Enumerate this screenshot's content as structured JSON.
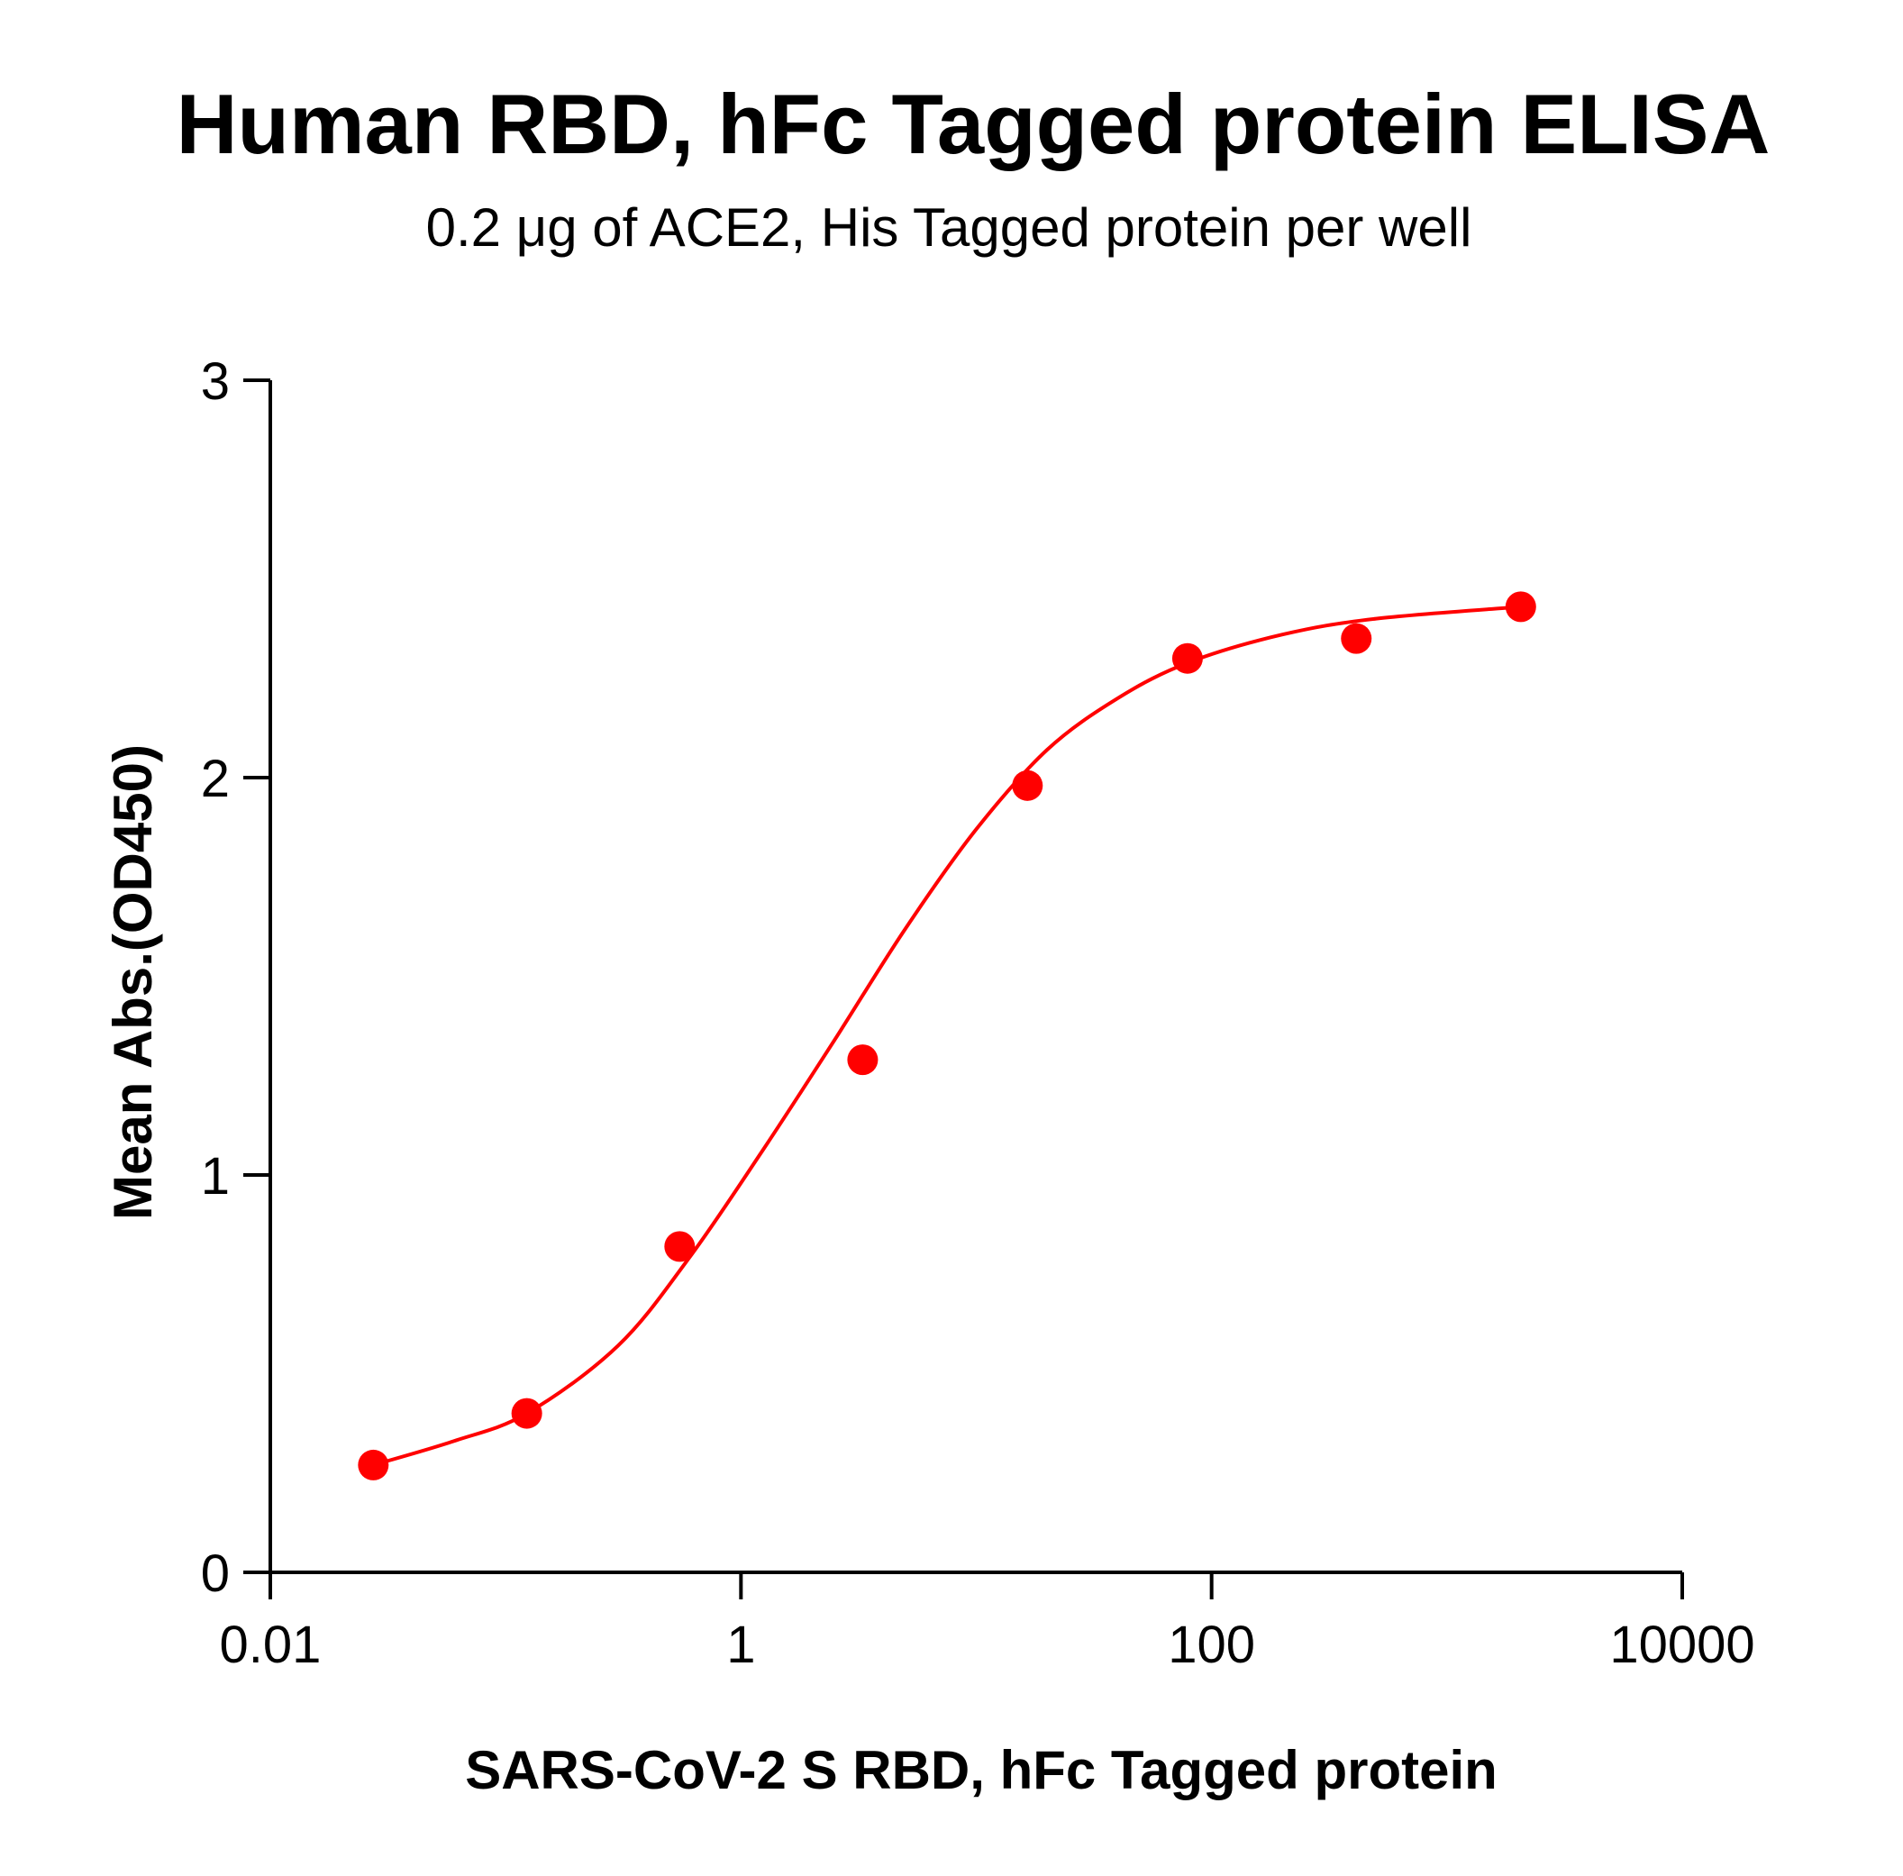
{
  "chart_data": {
    "type": "scatter",
    "title": "Human RBD, hFc Tagged protein ELISA",
    "subtitle": "0.2 μg of ACE2, His Tagged protein per well",
    "xlabel": "SARS-CoV-2 S RBD, hFc Tagged protein",
    "ylabel": "Mean Abs.(OD450)",
    "x_scale": "log",
    "xlim": [
      0.01,
      10000
    ],
    "ylim": [
      0,
      3
    ],
    "x_ticks": [
      0.01,
      1,
      100,
      10000
    ],
    "x_tick_labels": [
      "0.01",
      "1",
      "100",
      "10000"
    ],
    "y_ticks": [
      0,
      1,
      2,
      3
    ],
    "y_tick_labels": [
      "0",
      "1",
      "2",
      "3"
    ],
    "grid": false,
    "legend": "none",
    "series": [
      {
        "color": "#ff0000",
        "x": [
          0.0274,
          0.123,
          0.549,
          3.29,
          16.5,
          79.0,
          412,
          2060
        ],
        "y": [
          0.27,
          0.4,
          0.82,
          1.29,
          1.98,
          2.3,
          2.35,
          2.43
        ],
        "fit_curve": "sigmoidal",
        "fit": [
          [
            0.0274,
            0.27
          ],
          [
            0.06,
            0.33
          ],
          [
            0.123,
            0.4
          ],
          [
            0.3,
            0.57
          ],
          [
            0.6,
            0.79
          ],
          [
            1.2,
            1.05
          ],
          [
            2.5,
            1.34
          ],
          [
            5,
            1.62
          ],
          [
            10,
            1.87
          ],
          [
            20,
            2.07
          ],
          [
            40,
            2.2
          ],
          [
            80,
            2.29
          ],
          [
            200,
            2.36
          ],
          [
            500,
            2.4
          ],
          [
            2060,
            2.43
          ]
        ]
      }
    ]
  }
}
